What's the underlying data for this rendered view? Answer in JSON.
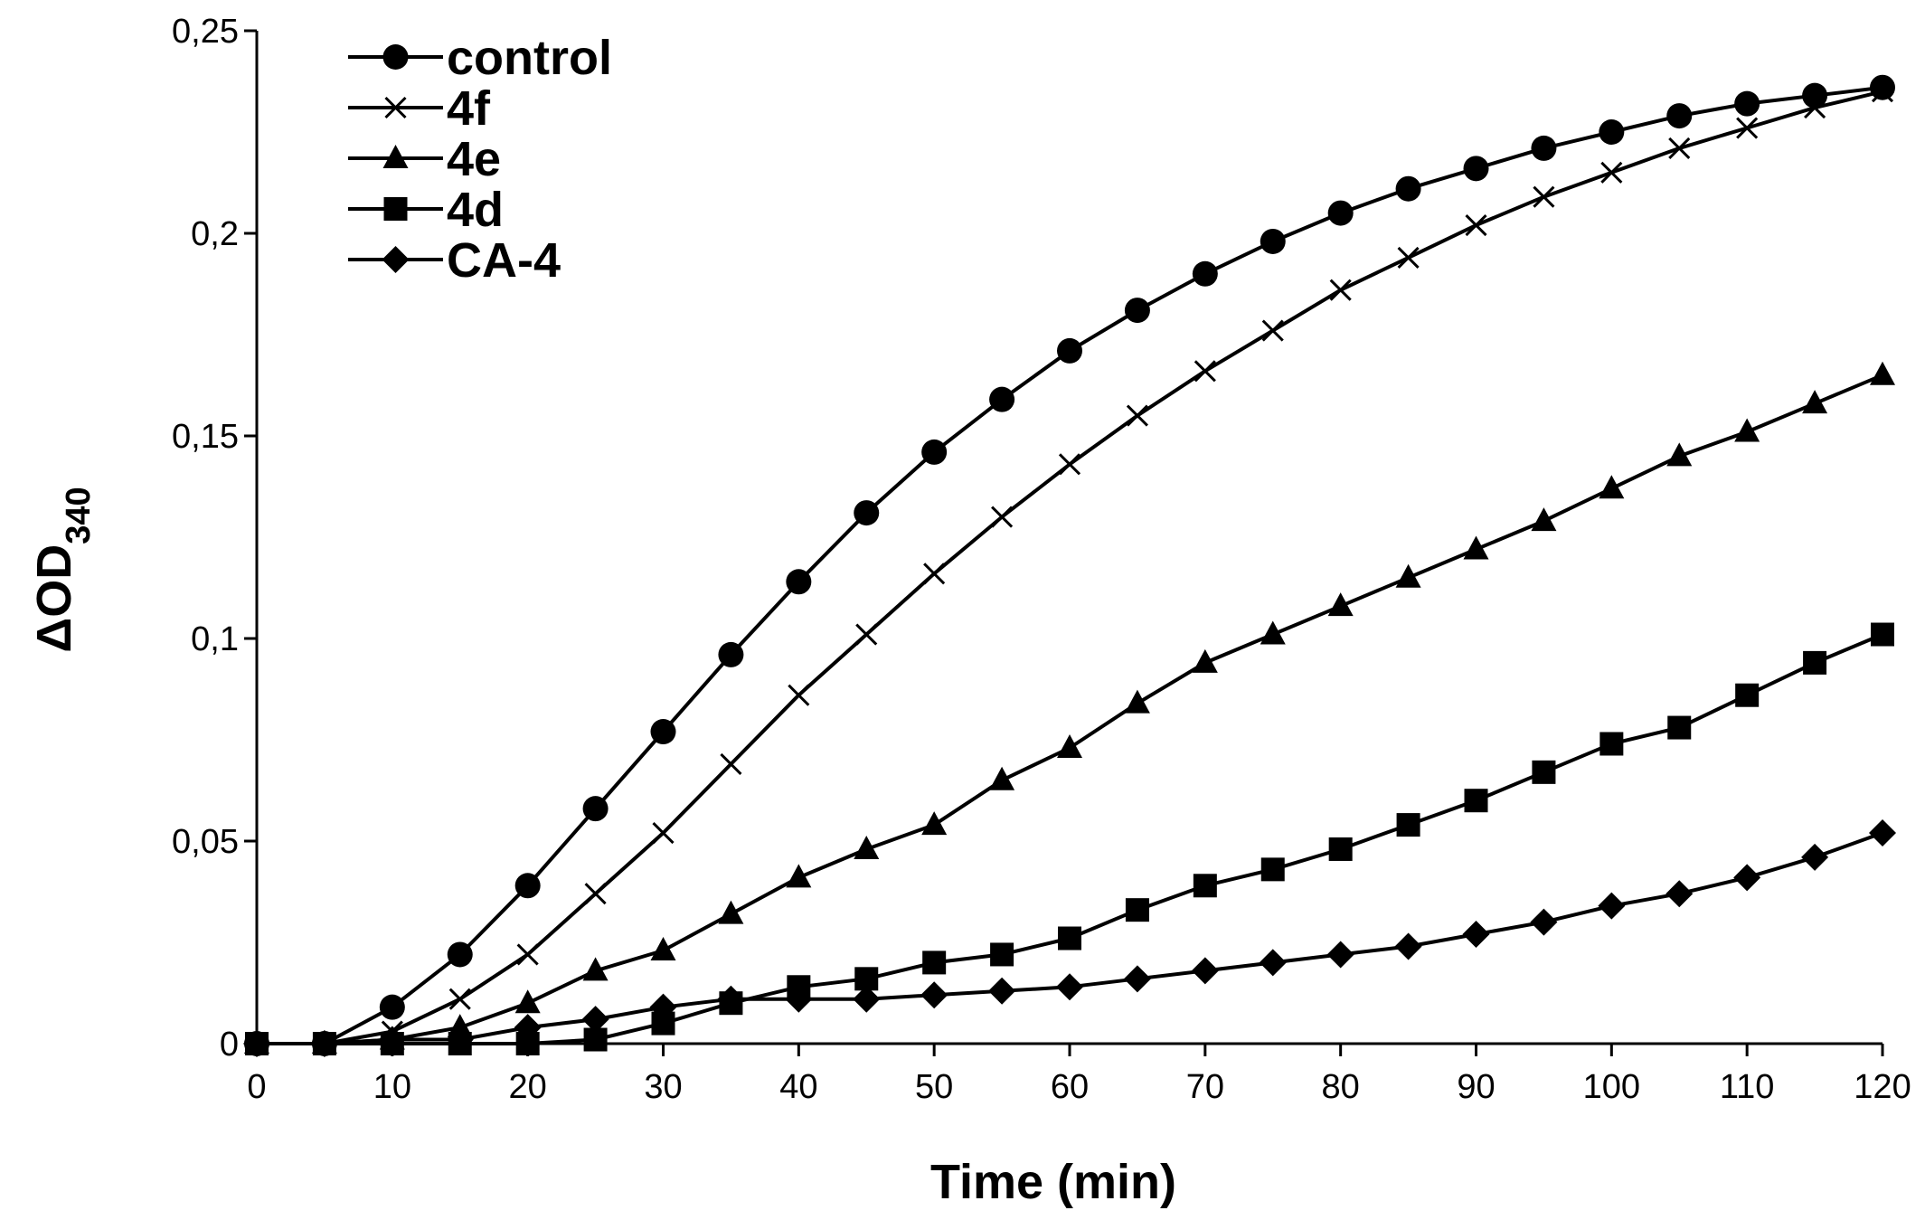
{
  "chart_data": {
    "type": "line",
    "title": "",
    "xlabel": "Time (min)",
    "ylabel_main": "ΔOD",
    "ylabel_sub": "340",
    "xlim": [
      0,
      120
    ],
    "ylim": [
      0,
      0.25
    ],
    "xticks": [
      0,
      10,
      20,
      30,
      40,
      50,
      60,
      70,
      80,
      90,
      100,
      110,
      120
    ],
    "yticks": [
      0,
      0.05,
      0.1,
      0.15,
      0.2,
      0.25
    ],
    "ytick_labels": [
      "0",
      "0,05",
      "0,1",
      "0,15",
      "0,2",
      "0,25"
    ],
    "grid": false,
    "legend_position": "top-left",
    "x": [
      0,
      5,
      10,
      15,
      20,
      25,
      30,
      35,
      40,
      45,
      50,
      55,
      60,
      65,
      70,
      75,
      80,
      85,
      90,
      95,
      100,
      105,
      110,
      115,
      120
    ],
    "series": [
      {
        "name": "control",
        "marker": "circle",
        "values": [
          0,
          0,
          0.009,
          0.022,
          0.039,
          0.058,
          0.077,
          0.096,
          0.114,
          0.131,
          0.146,
          0.159,
          0.171,
          0.181,
          0.19,
          0.198,
          0.205,
          0.211,
          0.216,
          0.221,
          0.225,
          0.229,
          0.232,
          0.234,
          0.236
        ]
      },
      {
        "name": "4f",
        "marker": "x",
        "values": [
          0,
          0,
          0.003,
          0.011,
          0.022,
          0.037,
          0.052,
          0.069,
          0.086,
          0.101,
          0.116,
          0.13,
          0.143,
          0.155,
          0.166,
          0.176,
          0.186,
          0.194,
          0.202,
          0.209,
          0.215,
          0.221,
          0.226,
          0.231,
          0.235
        ]
      },
      {
        "name": "4e",
        "marker": "triangle",
        "values": [
          0,
          0,
          0.001,
          0.004,
          0.01,
          0.018,
          0.023,
          0.032,
          0.041,
          0.048,
          0.054,
          0.065,
          0.073,
          0.084,
          0.094,
          0.101,
          0.108,
          0.115,
          0.122,
          0.129,
          0.137,
          0.145,
          0.151,
          0.158,
          0.165
        ]
      },
      {
        "name": "4d",
        "marker": "square",
        "values": [
          0,
          0,
          0,
          0,
          0,
          0.001,
          0.005,
          0.01,
          0.014,
          0.016,
          0.02,
          0.022,
          0.026,
          0.033,
          0.039,
          0.043,
          0.048,
          0.054,
          0.06,
          0.067,
          0.074,
          0.078,
          0.086,
          0.094,
          0.101
        ]
      },
      {
        "name": "CA-4",
        "marker": "diamond",
        "values": [
          0,
          0,
          0.001,
          0.001,
          0.004,
          0.006,
          0.009,
          0.011,
          0.011,
          0.011,
          0.012,
          0.013,
          0.014,
          0.016,
          0.018,
          0.02,
          0.022,
          0.024,
          0.027,
          0.03,
          0.034,
          0.037,
          0.041,
          0.046,
          0.052
        ]
      }
    ]
  }
}
